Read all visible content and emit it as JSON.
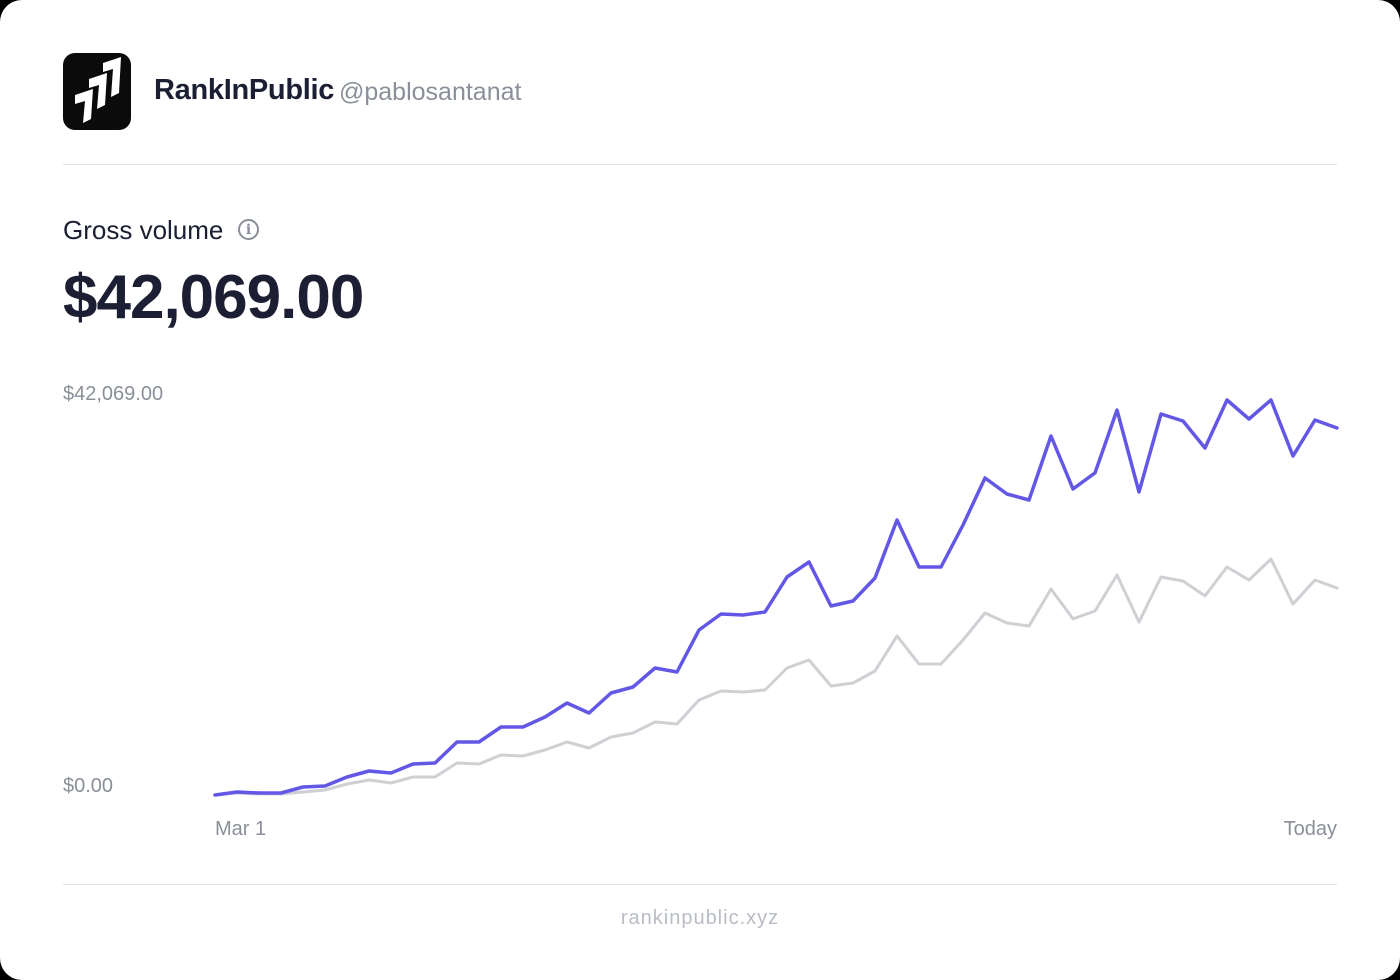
{
  "header": {
    "brand": "RankInPublic",
    "handle": "@pablosantanat",
    "logo_icon": "rankinpublic-logo-icon"
  },
  "metric": {
    "label": "Gross volume",
    "info_icon": "info-icon",
    "value": "$42,069.00"
  },
  "footer": {
    "url_text": "rankinpublic.xyz"
  },
  "chart_data": {
    "type": "line",
    "y_tick_labels": [
      "$42,069.00",
      "$0.00"
    ],
    "x_tick_labels": [
      "Mar 1",
      "Today"
    ],
    "ylim": [
      0,
      42069
    ],
    "grid": false,
    "legend": "none",
    "colors": {
      "current": "#6358e6",
      "previous": "#cfd0d4"
    },
    "series": [
      {
        "values": [
          0,
          320,
          210,
          210,
          850,
          960,
          1920,
          2560,
          2340,
          3300,
          3410,
          5650,
          5650,
          7240,
          7240,
          8310,
          9800,
          8730,
          10860,
          11500,
          13530,
          13100,
          17570,
          19280,
          19170,
          19490,
          23220,
          24820,
          20130,
          20660,
          23110,
          29290,
          24280,
          24280,
          28760,
          33760,
          32060,
          31420,
          38240,
          32590,
          34300,
          41000,
          32270,
          40580,
          39830,
          36960,
          42069,
          40050,
          42069,
          36110,
          39940,
          39090
        ]
      },
      {
        "values": [
          0,
          210,
          110,
          110,
          320,
          530,
          1170,
          1600,
          1280,
          1920,
          1920,
          3410,
          3300,
          4260,
          4150,
          4790,
          5650,
          5010,
          6180,
          6600,
          7780,
          7560,
          10120,
          11080,
          10970,
          11180,
          13530,
          14380,
          11610,
          11930,
          13210,
          16940,
          13950,
          13950,
          16510,
          19380,
          18320,
          18000,
          21940,
          18750,
          19600,
          23430,
          18430,
          23220,
          22790,
          21200,
          24280,
          22900,
          25140,
          20340,
          22900,
          22050
        ]
      }
    ]
  }
}
